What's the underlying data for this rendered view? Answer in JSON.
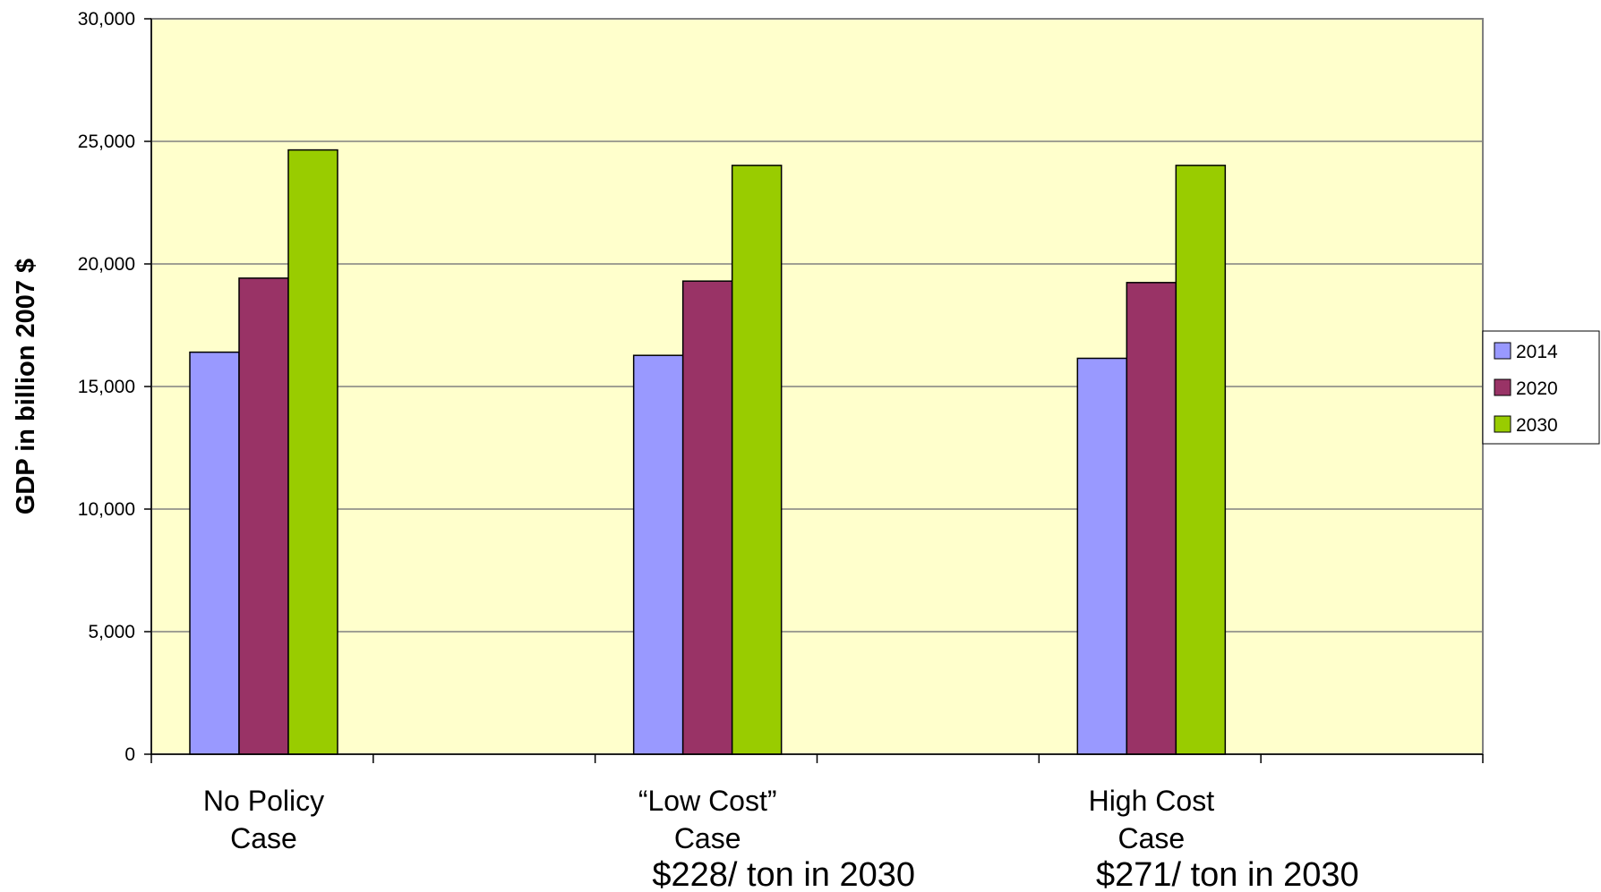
{
  "chart_data": {
    "type": "bar",
    "title": "",
    "ylabel": "GDP in billion 2007 $",
    "xlabel": "",
    "ylim": [
      0,
      30000
    ],
    "yticks": [
      0,
      5000,
      10000,
      15000,
      20000,
      25000,
      30000
    ],
    "ytick_labels": [
      "0",
      "5,000",
      "10,000",
      "15,000",
      "20,000",
      "25,000",
      "30,000"
    ],
    "grid": true,
    "plot_background": "#ffffcc",
    "legend_position": "right",
    "categories": [
      {
        "line1": "No Policy",
        "line2": "Case",
        "note": ""
      },
      {
        "line1": "“Low Cost”",
        "line2": "Case",
        "note": "$228/ ton in 2030"
      },
      {
        "line1": "High Cost",
        "line2": "Case",
        "note": "$271/ ton in 2030"
      }
    ],
    "series": [
      {
        "name": "2014",
        "color": "#9999ff",
        "values": [
          16400,
          16270,
          16150
        ]
      },
      {
        "name": "2020",
        "color": "#993366",
        "values": [
          19420,
          19300,
          19240
        ]
      },
      {
        "name": "2030",
        "color": "#99cc00",
        "values": [
          24650,
          24020,
          24020
        ]
      }
    ]
  }
}
